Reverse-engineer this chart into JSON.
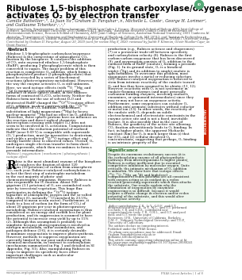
{
  "background_color": "#ffffff",
  "title_line1": "Ribulose 1,5-bisphosphate carboxylase/oxygenase",
  "title_line2": "activates O₂ by electron transfer",
  "author_line1": "Camille Bathellierᵃ,ᴮ, Li-Juan Yuᶜ, Graham D. Farquharᵃ,×, Michelle L. Cooteᶜ, George H. Lorimerᵈ,",
  "author_line2": "and Guillaume Tcherkezᵃ,ᶜ,ᵉ,¹",
  "affil": "ᴮUniversité Paris, Spectrométrie de Masse Isotopique, 69626 Lyon-Cedex 3, France; ᶜResearch School of Biology, ANU Joint College of Sciences, Australian National University, 2601 Canberra ACT, Australia; ᶜAustralian Research Council Centre of Excellence for Electromaterials Science, Research School of Chemistry, ANU Joint College of Sciences, Australian National University, 2601 Canberra ACT, Australia; ᵈDepartment of Chemistry and Biochemistry, University of Maryland, College Park, MD 20742; and ᵉInstitut de Recherches en Horticulture et Semences, Institut National de Recherche pour l’Agriculture, Alimentation et l’Environnement (INRAE), Université d’Angers, 49070 Beaucouzé, France",
  "contrib": "Contributed by Graham D. Farquhar, August 20, 2020 (sent for review May 8, 2020; reviewed by Judith P. Klinman, Oliver Mueller-Cajar, and T. Grant Pearce)",
  "abstract_text": "Ribulose 1,5-bisphosphate carboxylase/oxygenase (Rubisco) is the cornerstone of atmospheric CO₂ fixation by the biosphere. It catalyzes the addition of CO₂ onto oxyenated ribulose 1,5-bisphosphate (RuBP), producing 3-phosphoglycerate which is then converted to sugars. The major problem of this reaction is competitive O₂ addition, which forms a phosphorylated product (2-phosphoglycolate) that must be recycled by a series of biochemical reactions (photo-respiratory metabolism). However, the way the enzyme activates O₂ is still unknown. Here, we used isotope effects (with ¹⁸O, ¹⁷Mg, and ¹⁷O) to monitor O₂ activation and assess the influence of outer sphere atoms, in two Rubisco forms of contrasted O₂/CO₂ selectivity. Neither the Rubisco form nor the use of solvent D₂O and deuterated RuBP changed the ¹⁸O/¹⁶O isotope effect of O₂ addition, in clear contrast with the ¹⁷O/¹⁶O isotope effect of CO₂ addition. Furthermore, substitution of light magnesium (²⁴Mg) by heavy, nuclear magnetic ²⁵Mg had no effect on O₂ addition. Therefore, outer sphere protons have no influence on the reaction and direct radical chemistry (interception crossing with triplet O₂) does not seem to be involved in O₂ activation. Computations indicate that the reduction potential of enolized RuBP (near 0.69 V) is compatible with superoxide (O₂⁻) production, must be insensitive to deuterium, and yields a predicted ¹⁸O/¹⁶O isotope effect and energy barrier close to observed values. Overall, O₂ undergoes single electron transfer to form short-lived superoxide, which then recombines to form a peroxide intermediate.",
  "keywords": "Rubisco | oxygenation | mechanism | photosynthesis | isotope effect",
  "left_col_intro": "ubisc is the most abundant enzyme of the biosphere (1) and catalyzes the fixation of about 120 gigatons (10 petatons) of carbon from atmospheric CO₂ each year. Rubisco-catalyzed carboxylation is in fact the first step of autotrophic metabolism in the vast majority of photo- and chemoautotrophic organisms. However, Rubisco is also responsible for O₂ fixation. About 100 gigatons (3.1 petatons) of O₂ are assimilated each year by terrestrial vegetation. This huge flux participates in defining the ¹⁷O/¹⁶O isotope signature of atmospheric oxygen and the so-called Dole effect (O₂ naturally ¹⁷O-enriched by 23.5‰ compared to mean ocean water). Furthermore, it leads to a loss of carbon (in the form of CO₂) of about 20 gigatons per year in photorespiratory metabolism. Rubisco-catalyzed oxygenation is thus considered as an energy and carbon loss for plant production, and its suppression is assumed to have the potential to increase crop yield by up to 15% (2). Although this assumption is probably too simplistic because photorespiration is involved in nitrogen metabolism, sulfur assimilation, and pathogen defense (3-6), it is certainly desirable to minimize oxygenation to improve photosynthesis. However, methods to suppress oxygenation are currently limited by our poor understanding of its chemical mechanism, in contrast to carboxylation (mechanism summarized in Fig. 1 and detailed in SI Appendix, Fig. S1). Also, manipulating Rubisco in crops to improve its specificity faces other important challenges such as molecular interactions with",
  "right_col_top": "production (e.g., Rubisco activase and chaperones) (7) or a persistent trade-off between specificity and carboxylation velocity (8). Rubisco is the first carbon-carbon oxygenase that has been discovered (9), and oxygenation consists of O₂ addition to the enolized form of RuBP (enolate), forming a peroxide (Fig. 1). In its ground state, O₂ is a biradical triplet (³Σg) and its addition to singlet enolate is spin forbidden. To overcome this problem, most oxygenases involve a metal or reducing cofactors (10). Rubisco-catalyzed oxygenation is believed to stem from intrinsic reactivity of the enolate toward O₂ and has thus been assumed to be abiotic (11, 12). However, reactivity with O₂ is not systematic in enolate-forming enzymes (and more generally, carbanion-forming enzymes, involving enolases, enoamines, or quinonoid intermediates) since they may or may not have an oxygenase activity. Furthermore, some oxygenases can catalyze O₂ addition onto aromatic substrates without cofactor or metal ion (13). In other words, the reactivity of the enolate with O₂ depends on subtle electrochemical and electrostatic constraints in the enzyme active site and is not a fixed, inevitable feature. It is also possible that in the case of Rubisco, the geometry of the active site allowing CO₂ fixation adventitiously leads to O₂ binding. In fact, in higher plants, the apparent Michaelis constant (Km) for O₂ is much larger than (i) that for (CO₂ and (2) cellular dissolved O₂ concentrations, suggesting that perhaps, O₂ binding is an intrinsic property of the",
  "significance_title": "Significance",
  "significance_body": "Despite its enormous evolutionary success (it is the carboxylating enzyme of all photosynthetic pathways from microorganisms to higher plants), Rubisco is rather inefficient due to essential competitive inhibition by molecular oxygen. Quite critically, the intimate mechanism of O₂ addition is unknown. We show here that isotope effects (¹⁸O, ¹⁷O, ²⁵Mg, on ¹H) and high-level computations of redox potential are all consistent with oxygen acting as an oxidant in a redox reaction generating superoxide which then attacks the substrate. Our results explain why the elimination of oxygenation by enzymatic engineering is so difficult, because it would require a drastic change in electron and/or redox potential of the substrate, and this would alter carboxylase activity.",
  "author_contribs": "Author contributions: C.B., Li Y., G.D.F., and G.T. designed research; C.B., Li Y., M.C., and G.T. performed research; C.B. and G.H.L. contributed new reagents/analytic tools; C.B., G.H.L., and G.T. analyzed data; and G.T. wrote the paper.",
  "reviewers_line": "Reviewers: J.P.K., University of California, Berkeley; O.M.-C., Nanyang Technological University; and T.G.P., University of Canterbury.",
  "competing": "The authors declare no competing interest.",
  "license": "Published under the PNAS license.",
  "correspondence": "¹To whom correspondence may be addressed. Email: Graham.Farquhar@anu.edu.au or guillaume.tcherkez@inrae.fr.",
  "supp_info": "This article contains supporting information online at https://www.pnas.org/lookup/suppl/doi:10.1073/pnas.2008824117/-/DCSupplemental.",
  "journal_footer": "www.pnas.org/cgi/doi/10.1073/pnas.2008824117",
  "page_footer": "PNAS Latest Articles | 1 of 8",
  "sidebar_text": "BIOCHEMISTRY",
  "sig_bg": "#eef7ee",
  "sig_border": "#4a7c4a",
  "sidebar_color": "#cc2200"
}
